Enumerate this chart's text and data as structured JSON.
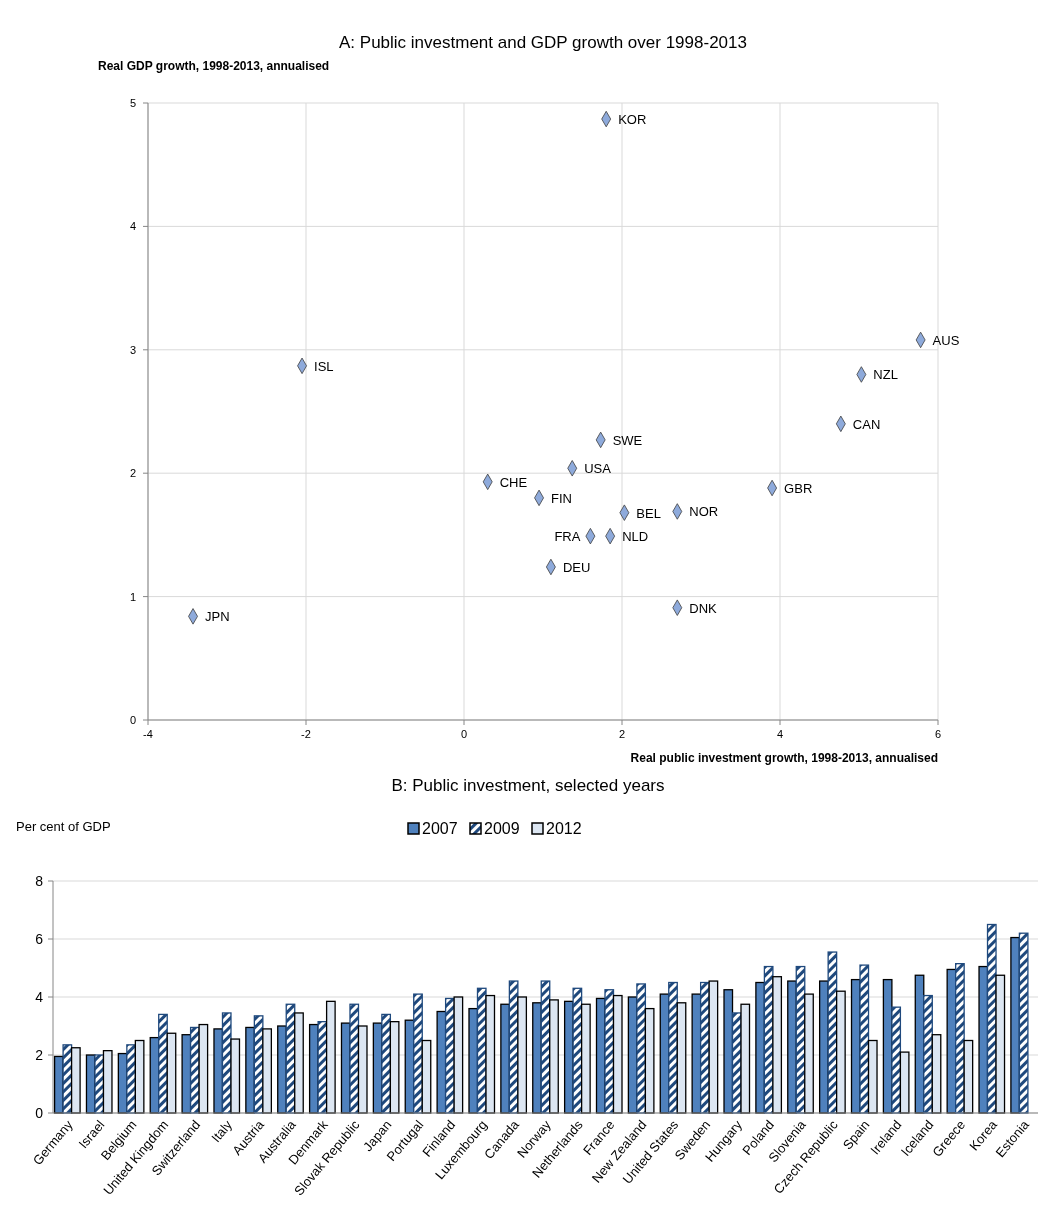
{
  "chart_data": [
    {
      "type": "scatter",
      "title": "A: Public investment and GDP growth over 1998-2013",
      "xlabel": "Real public investment growth, 1998-2013, annualised",
      "ylabel": "Real GDP growth, 1998-2013, annualised",
      "xlim": [
        -4,
        6
      ],
      "xticks": [
        -4,
        -2,
        0,
        2,
        4,
        6
      ],
      "ylim": [
        0,
        5
      ],
      "yticks": [
        0,
        1,
        2,
        3,
        4,
        5
      ],
      "grid": true,
      "marker": "diamond",
      "series": [
        {
          "color": "#8eaadb",
          "x": [
            1.8,
            5.78,
            -2.05,
            5.03,
            4.77,
            1.73,
            1.37,
            0.3,
            0.95,
            3.9,
            2.03,
            2.7,
            1.6,
            1.85,
            1.1,
            2.7,
            -3.43
          ],
          "values": [
            4.87,
            3.08,
            2.87,
            2.8,
            2.4,
            2.27,
            2.04,
            1.93,
            1.8,
            1.88,
            1.68,
            1.69,
            1.49,
            1.49,
            1.24,
            0.91,
            0.84
          ]
        }
      ],
      "annotations": [
        {
          "text": "KOR",
          "x": 1.8,
          "y": 4.87
        },
        {
          "text": "AUS",
          "x": 5.78,
          "y": 3.08
        },
        {
          "text": "ISL",
          "x": -2.05,
          "y": 2.87
        },
        {
          "text": "NZL",
          "x": 5.03,
          "y": 2.8
        },
        {
          "text": "CAN",
          "x": 4.77,
          "y": 2.4
        },
        {
          "text": "SWE",
          "x": 1.73,
          "y": 2.27
        },
        {
          "text": "USA",
          "x": 1.37,
          "y": 2.04
        },
        {
          "text": "CHE",
          "x": 0.3,
          "y": 1.93
        },
        {
          "text": "FIN",
          "x": 0.95,
          "y": 1.8
        },
        {
          "text": "GBR",
          "x": 3.9,
          "y": 1.88
        },
        {
          "text": "BEL",
          "x": 2.03,
          "y": 1.68
        },
        {
          "text": "NOR",
          "x": 2.7,
          "y": 1.69
        },
        {
          "text": "FRA",
          "x": 1.6,
          "y": 1.49
        },
        {
          "text": "NLD",
          "x": 1.85,
          "y": 1.49
        },
        {
          "text": "DEU",
          "x": 1.1,
          "y": 1.24
        },
        {
          "text": "DNK",
          "x": 2.7,
          "y": 0.91
        },
        {
          "text": "JPN",
          "x": -3.43,
          "y": 0.84
        }
      ]
    },
    {
      "type": "bar",
      "title": "B: Public investment, selected years",
      "ylabel": "Per cent  of GDP",
      "ylim": [
        0,
        8
      ],
      "yticks": [
        0,
        2,
        4,
        6,
        8
      ],
      "grid": "y",
      "legend": "top",
      "categories": [
        "Germany",
        "Israel",
        "Belgium",
        "United Kingdom",
        "Switzerland",
        "Italy",
        "Austria",
        "Australia",
        "Denmark",
        "Slovak Republic",
        "Japan",
        "Portugal",
        "Finland",
        "Luxembourg",
        "Canada",
        "Norway",
        "Netherlands",
        "France",
        "New Zealand",
        "United States",
        "Sweden",
        "Hungary",
        "Poland",
        "Slovenia",
        "Czech Republic",
        "Spain",
        "Ireland",
        "Iceland",
        "Greece",
        "Korea",
        "Estonia"
      ],
      "series": [
        {
          "name": "2007",
          "color": "#4f81bd",
          "values": [
            1.95,
            2.0,
            2.05,
            2.6,
            2.7,
            2.9,
            2.95,
            3.0,
            3.05,
            3.1,
            3.1,
            3.2,
            3.5,
            3.6,
            3.75,
            3.8,
            3.85,
            3.95,
            4.0,
            4.1,
            4.1,
            4.25,
            4.5,
            4.55,
            4.55,
            4.6,
            4.6,
            4.75,
            4.95,
            5.05,
            6.05
          ]
        },
        {
          "name": "2009",
          "color": "#1f497d",
          "values": [
            2.35,
            2.0,
            2.35,
            3.4,
            2.95,
            3.45,
            3.35,
            3.75,
            3.15,
            3.75,
            3.4,
            4.1,
            3.95,
            4.3,
            4.55,
            4.55,
            4.3,
            4.25,
            4.45,
            4.5,
            4.5,
            3.45,
            5.05,
            5.05,
            5.55,
            5.1,
            3.65,
            4.05,
            5.15,
            6.5,
            6.2
          ]
        },
        {
          "name": "2012",
          "color": "#dce6f2",
          "values": [
            2.25,
            2.15,
            2.5,
            2.75,
            3.05,
            2.55,
            2.9,
            3.45,
            3.85,
            3.0,
            3.15,
            2.5,
            4.0,
            4.05,
            4.0,
            3.9,
            3.75,
            4.05,
            3.6,
            3.8,
            4.55,
            3.75,
            4.7,
            4.1,
            4.2,
            2.5,
            2.1,
            2.7,
            2.5,
            4.75,
            null
          ]
        }
      ]
    }
  ]
}
